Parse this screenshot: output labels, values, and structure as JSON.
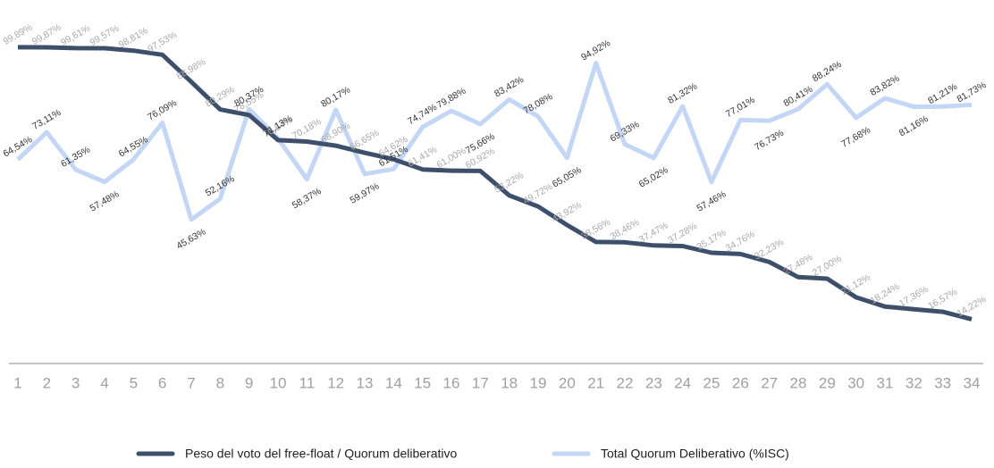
{
  "chart_data": {
    "type": "line",
    "categories": [
      "1",
      "2",
      "3",
      "4",
      "5",
      "6",
      "7",
      "8",
      "9",
      "10",
      "11",
      "12",
      "13",
      "14",
      "15",
      "16",
      "17",
      "18",
      "19",
      "20",
      "21",
      "22",
      "23",
      "24",
      "25",
      "26",
      "27",
      "28",
      "29",
      "30",
      "31",
      "32",
      "33",
      "34"
    ],
    "ylim": [
      0,
      100
    ],
    "series": [
      {
        "name": "Peso del voto del free-float / Quorum deliberativo",
        "color": "#3d4f6b",
        "values": [
          99.89,
          99.87,
          99.61,
          99.57,
          98.81,
          97.53,
          88.98,
          80.29,
          78.55,
          70.64,
          70.18,
          68.9,
          66.65,
          64.62,
          61.41,
          61.0,
          60.92,
          53.22,
          49.72,
          43.92,
          38.56,
          38.46,
          37.47,
          37.28,
          35.17,
          34.76,
          32.23,
          27.48,
          27.0,
          21.12,
          18.24,
          17.36,
          16.57,
          14.22
        ],
        "value_labels": [
          "99,89%",
          "99,87%",
          "99,61%",
          "99,57%",
          "98,81%",
          "97,53%",
          "88,98%",
          "80,29%",
          "78,55%",
          "70,64%",
          "70,18%",
          "68,90%",
          "66,65%",
          "64,62%",
          "61,41%",
          "61,00%",
          "60,92%",
          "53,22%",
          "49,72%",
          "43,92%",
          "38,56%",
          "38,46%",
          "37,47%",
          "37,28%",
          "35,17%",
          "34,76%",
          "32,23%",
          "27,48%",
          "27,00%",
          "21,12%",
          "18,24%",
          "17,36%",
          "16,57%",
          "14,22%"
        ]
      },
      {
        "name": "Total Quorum Deliberativo (%ISC)",
        "color": "#c3d6f5",
        "values": [
          64.54,
          73.11,
          61.35,
          57.48,
          64.55,
          76.09,
          45.63,
          52.16,
          80.37,
          71.13,
          58.37,
          80.17,
          59.97,
          61.51,
          74.74,
          79.88,
          75.66,
          83.42,
          78.08,
          65.05,
          94.92,
          69.33,
          65.02,
          81.32,
          57.46,
          77.01,
          76.73,
          80.41,
          88.24,
          77.68,
          83.82,
          81.16,
          81.21,
          81.73
        ],
        "value_labels": [
          "64,54%",
          "73,11%",
          "61,35%",
          "57,48%",
          "64,55%",
          "76,09%",
          "45,63%",
          "52,16%",
          "80,37%",
          "71,13%",
          "58,37%",
          "80,17%",
          "59,97%",
          "61,51%",
          "74,74%",
          "79,88%",
          "75,66%",
          "83,42%",
          "78,08%",
          "65,05%",
          "94,92%",
          "69,33%",
          "65,02%",
          "81,32%",
          "57,46%",
          "77,01%",
          "76,73%",
          "80,41%",
          "88,24%",
          "77,68%",
          "83,82%",
          "81,16%",
          "81,21%",
          "81,73%"
        ]
      }
    ]
  }
}
